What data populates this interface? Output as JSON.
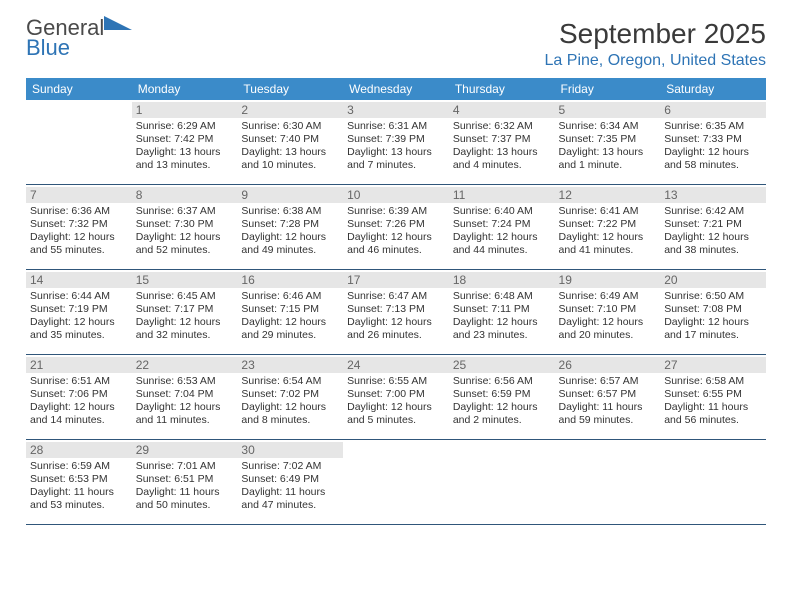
{
  "logo": {
    "line1": "General",
    "line2": "Blue"
  },
  "title": "September 2025",
  "location": "La Pine, Oregon, United States",
  "colors": {
    "header_bg": "#3b8bc9",
    "header_text": "#ffffff",
    "daynum_bg": "#e6e6e6",
    "daynum_text": "#666666",
    "rule": "#30567a",
    "accent": "#2e74b5",
    "body_text": "#333333",
    "background": "#ffffff"
  },
  "typography": {
    "title_fontsize": 28,
    "location_fontsize": 16,
    "dow_fontsize": 12,
    "daynum_fontsize": 12,
    "body_fontsize": 10.5
  },
  "dow": [
    "Sunday",
    "Monday",
    "Tuesday",
    "Wednesday",
    "Thursday",
    "Friday",
    "Saturday"
  ],
  "weeks": [
    [
      {
        "n": "",
        "sr": "",
        "ss": "",
        "dl": ""
      },
      {
        "n": "1",
        "sr": "Sunrise: 6:29 AM",
        "ss": "Sunset: 7:42 PM",
        "dl": "Daylight: 13 hours and 13 minutes."
      },
      {
        "n": "2",
        "sr": "Sunrise: 6:30 AM",
        "ss": "Sunset: 7:40 PM",
        "dl": "Daylight: 13 hours and 10 minutes."
      },
      {
        "n": "3",
        "sr": "Sunrise: 6:31 AM",
        "ss": "Sunset: 7:39 PM",
        "dl": "Daylight: 13 hours and 7 minutes."
      },
      {
        "n": "4",
        "sr": "Sunrise: 6:32 AM",
        "ss": "Sunset: 7:37 PM",
        "dl": "Daylight: 13 hours and 4 minutes."
      },
      {
        "n": "5",
        "sr": "Sunrise: 6:34 AM",
        "ss": "Sunset: 7:35 PM",
        "dl": "Daylight: 13 hours and 1 minute."
      },
      {
        "n": "6",
        "sr": "Sunrise: 6:35 AM",
        "ss": "Sunset: 7:33 PM",
        "dl": "Daylight: 12 hours and 58 minutes."
      }
    ],
    [
      {
        "n": "7",
        "sr": "Sunrise: 6:36 AM",
        "ss": "Sunset: 7:32 PM",
        "dl": "Daylight: 12 hours and 55 minutes."
      },
      {
        "n": "8",
        "sr": "Sunrise: 6:37 AM",
        "ss": "Sunset: 7:30 PM",
        "dl": "Daylight: 12 hours and 52 minutes."
      },
      {
        "n": "9",
        "sr": "Sunrise: 6:38 AM",
        "ss": "Sunset: 7:28 PM",
        "dl": "Daylight: 12 hours and 49 minutes."
      },
      {
        "n": "10",
        "sr": "Sunrise: 6:39 AM",
        "ss": "Sunset: 7:26 PM",
        "dl": "Daylight: 12 hours and 46 minutes."
      },
      {
        "n": "11",
        "sr": "Sunrise: 6:40 AM",
        "ss": "Sunset: 7:24 PM",
        "dl": "Daylight: 12 hours and 44 minutes."
      },
      {
        "n": "12",
        "sr": "Sunrise: 6:41 AM",
        "ss": "Sunset: 7:22 PM",
        "dl": "Daylight: 12 hours and 41 minutes."
      },
      {
        "n": "13",
        "sr": "Sunrise: 6:42 AM",
        "ss": "Sunset: 7:21 PM",
        "dl": "Daylight: 12 hours and 38 minutes."
      }
    ],
    [
      {
        "n": "14",
        "sr": "Sunrise: 6:44 AM",
        "ss": "Sunset: 7:19 PM",
        "dl": "Daylight: 12 hours and 35 minutes."
      },
      {
        "n": "15",
        "sr": "Sunrise: 6:45 AM",
        "ss": "Sunset: 7:17 PM",
        "dl": "Daylight: 12 hours and 32 minutes."
      },
      {
        "n": "16",
        "sr": "Sunrise: 6:46 AM",
        "ss": "Sunset: 7:15 PM",
        "dl": "Daylight: 12 hours and 29 minutes."
      },
      {
        "n": "17",
        "sr": "Sunrise: 6:47 AM",
        "ss": "Sunset: 7:13 PM",
        "dl": "Daylight: 12 hours and 26 minutes."
      },
      {
        "n": "18",
        "sr": "Sunrise: 6:48 AM",
        "ss": "Sunset: 7:11 PM",
        "dl": "Daylight: 12 hours and 23 minutes."
      },
      {
        "n": "19",
        "sr": "Sunrise: 6:49 AM",
        "ss": "Sunset: 7:10 PM",
        "dl": "Daylight: 12 hours and 20 minutes."
      },
      {
        "n": "20",
        "sr": "Sunrise: 6:50 AM",
        "ss": "Sunset: 7:08 PM",
        "dl": "Daylight: 12 hours and 17 minutes."
      }
    ],
    [
      {
        "n": "21",
        "sr": "Sunrise: 6:51 AM",
        "ss": "Sunset: 7:06 PM",
        "dl": "Daylight: 12 hours and 14 minutes."
      },
      {
        "n": "22",
        "sr": "Sunrise: 6:53 AM",
        "ss": "Sunset: 7:04 PM",
        "dl": "Daylight: 12 hours and 11 minutes."
      },
      {
        "n": "23",
        "sr": "Sunrise: 6:54 AM",
        "ss": "Sunset: 7:02 PM",
        "dl": "Daylight: 12 hours and 8 minutes."
      },
      {
        "n": "24",
        "sr": "Sunrise: 6:55 AM",
        "ss": "Sunset: 7:00 PM",
        "dl": "Daylight: 12 hours and 5 minutes."
      },
      {
        "n": "25",
        "sr": "Sunrise: 6:56 AM",
        "ss": "Sunset: 6:59 PM",
        "dl": "Daylight: 12 hours and 2 minutes."
      },
      {
        "n": "26",
        "sr": "Sunrise: 6:57 AM",
        "ss": "Sunset: 6:57 PM",
        "dl": "Daylight: 11 hours and 59 minutes."
      },
      {
        "n": "27",
        "sr": "Sunrise: 6:58 AM",
        "ss": "Sunset: 6:55 PM",
        "dl": "Daylight: 11 hours and 56 minutes."
      }
    ],
    [
      {
        "n": "28",
        "sr": "Sunrise: 6:59 AM",
        "ss": "Sunset: 6:53 PM",
        "dl": "Daylight: 11 hours and 53 minutes."
      },
      {
        "n": "29",
        "sr": "Sunrise: 7:01 AM",
        "ss": "Sunset: 6:51 PM",
        "dl": "Daylight: 11 hours and 50 minutes."
      },
      {
        "n": "30",
        "sr": "Sunrise: 7:02 AM",
        "ss": "Sunset: 6:49 PM",
        "dl": "Daylight: 11 hours and 47 minutes."
      },
      {
        "n": "",
        "sr": "",
        "ss": "",
        "dl": ""
      },
      {
        "n": "",
        "sr": "",
        "ss": "",
        "dl": ""
      },
      {
        "n": "",
        "sr": "",
        "ss": "",
        "dl": ""
      },
      {
        "n": "",
        "sr": "",
        "ss": "",
        "dl": ""
      }
    ]
  ]
}
